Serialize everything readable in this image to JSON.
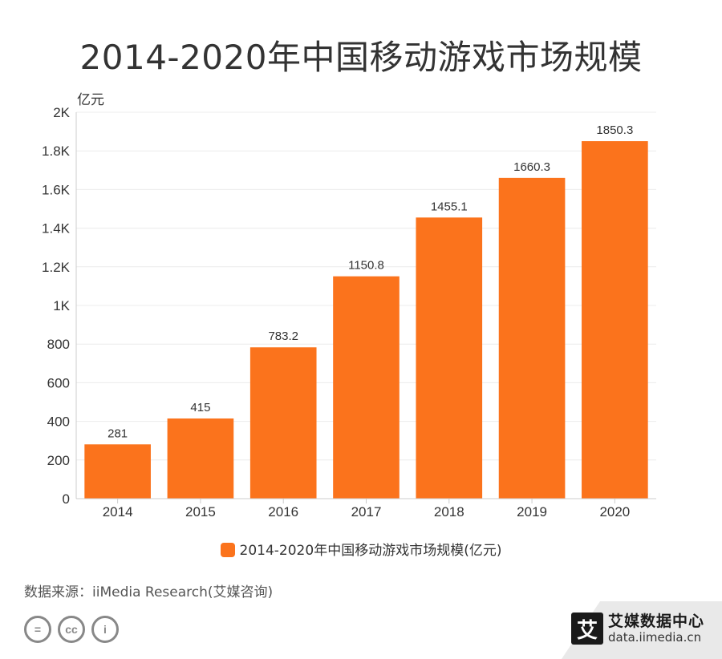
{
  "title": "2014-2020年中国移动游戏市场规模",
  "legend_label": "2014-2020年中国移动游戏市场规模(亿元)",
  "source": "数据来源：iiMedia Research(艾媒咨询)",
  "brand": {
    "logo_char": "艾",
    "name": "艾媒数据中心",
    "url": "data.iimedia.cn"
  },
  "cc_icons": [
    "=",
    "cc",
    "i"
  ],
  "colors": {
    "bar": "#FB731C",
    "axis": "#cccccc",
    "grid": "#ececec"
  },
  "chart_data": {
    "type": "bar",
    "categories": [
      "2014",
      "2015",
      "2016",
      "2017",
      "2018",
      "2019",
      "2020"
    ],
    "series": [
      {
        "name": "2014-2020年中国移动游戏市场规模(亿元)",
        "values": [
          281,
          415,
          783.2,
          1150.8,
          1455.1,
          1660.3,
          1850.3
        ]
      }
    ],
    "data_labels": [
      "281",
      "415",
      "783.2",
      "1150.8",
      "1455.1",
      "1660.3",
      "1850.3"
    ],
    "ylabel": "亿元",
    "ylim": [
      0,
      2000
    ],
    "yticks": [
      0,
      200,
      400,
      600,
      800,
      1000,
      1200,
      1400,
      1600,
      1800,
      2000
    ],
    "ytick_labels": [
      "0",
      "200",
      "400",
      "600",
      "800",
      "1K",
      "1.2K",
      "1.4K",
      "1.6K",
      "1.8K",
      "2K"
    ],
    "grid": true,
    "legend_position": "bottom"
  }
}
